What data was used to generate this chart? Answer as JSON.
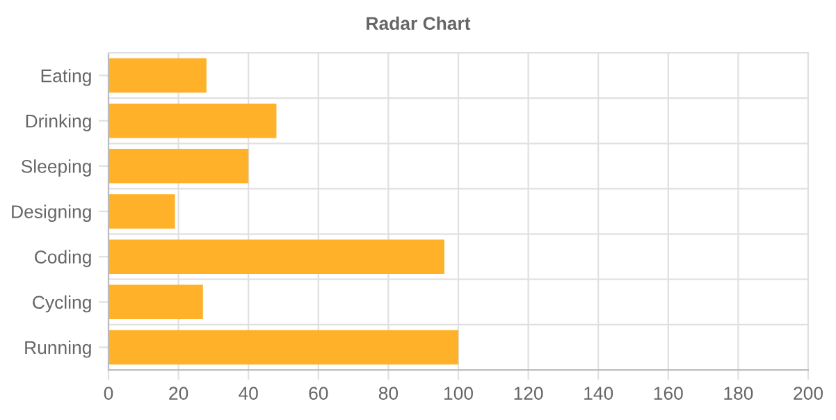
{
  "chart_data": {
    "type": "bar",
    "orientation": "horizontal",
    "title": "Radar Chart",
    "categories": [
      "Eating",
      "Drinking",
      "Sleeping",
      "Designing",
      "Coding",
      "Cycling",
      "Running"
    ],
    "values": [
      28,
      48,
      40,
      19,
      96,
      27,
      100
    ],
    "color": "#ffb12a",
    "xlim": [
      0,
      200
    ],
    "xticks": [
      0,
      20,
      40,
      60,
      80,
      100,
      120,
      140,
      160,
      180,
      200
    ],
    "grid": true
  }
}
